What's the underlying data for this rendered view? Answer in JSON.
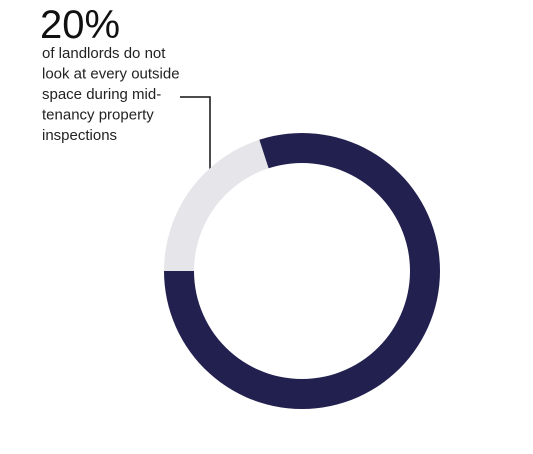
{
  "chart_data": {
    "type": "donut",
    "values": [
      20,
      80
    ],
    "value_labels": [
      "20%",
      null
    ],
    "colors": [
      "#e6e6ea",
      "#22204f"
    ],
    "annotation": [
      "of landlords do not",
      "look at every outside",
      "space during mid-",
      "tenancy property",
      "inspections"
    ]
  }
}
